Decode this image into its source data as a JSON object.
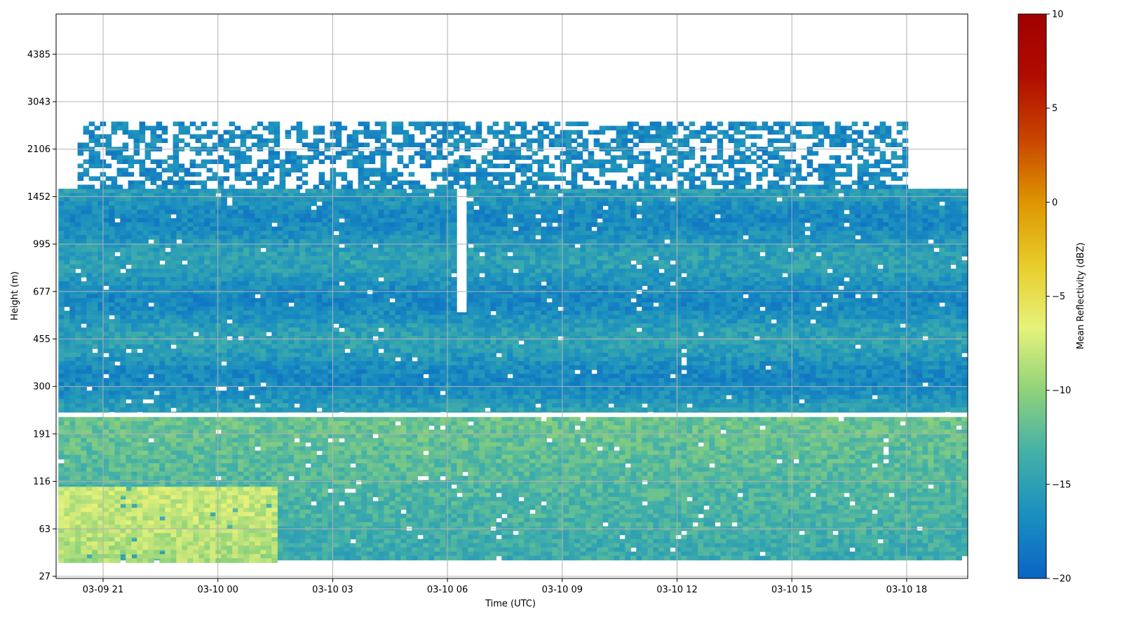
{
  "chart_data": {
    "type": "heatmap",
    "title": "",
    "xlabel": "Time (UTC)",
    "ylabel": "Height (m)",
    "x_ticks": [
      "03-09 21",
      "03-10 00",
      "03-10 03",
      "03-10 06",
      "03-10 09",
      "03-10 12",
      "03-10 15",
      "03-10 18"
    ],
    "y_ticks": [
      "27",
      "63",
      "116",
      "191",
      "300",
      "455",
      "677",
      "995",
      "1452",
      "2106",
      "3043",
      "4385"
    ],
    "xlim": [
      "03-09 19:45",
      "03-10 19:35"
    ],
    "grid": true,
    "colorbar": {
      "label": "Mean Reflectivity (dBZ)",
      "vmin": -20,
      "vmax": 10,
      "ticks": [
        "10",
        "5",
        "0",
        "−5",
        "−10",
        "−15",
        "−20"
      ],
      "colors": [
        "#0b63c5",
        "#1a8fc0",
        "#43b0a8",
        "#8fd27a",
        "#e6f27a",
        "#e8cc2a",
        "#dd9500",
        "#c84500",
        "#b00d00",
        "#a00000"
      ]
    },
    "bands": [
      {
        "height_from": 240,
        "height_to": 1560,
        "start": "03-09 19:50",
        "end": "03-10 19:35",
        "typical_dbz": -16
      },
      {
        "height_from": 1560,
        "height_to": 2650,
        "start": "03-09 20:20",
        "end": "03-10 17:55",
        "typical_dbz": -17,
        "coverage": "partial"
      },
      {
        "height_from": 40,
        "height_to": 230,
        "start": "03-09 19:50",
        "end": "03-10 19:35",
        "typical_dbz": -14
      },
      {
        "height_from": 40,
        "height_to": 110,
        "start": "03-09 19:50",
        "end": "03-10 01:30",
        "typical_dbz": -9
      }
    ],
    "gaps": [
      {
        "height_from": 230,
        "height_to": 240,
        "start": "03-09 19:50",
        "end": "03-10 19:35"
      },
      {
        "height_from": 580,
        "height_to": 1560,
        "start": "03-10 06:15",
        "end": "03-10 06:30"
      }
    ]
  }
}
